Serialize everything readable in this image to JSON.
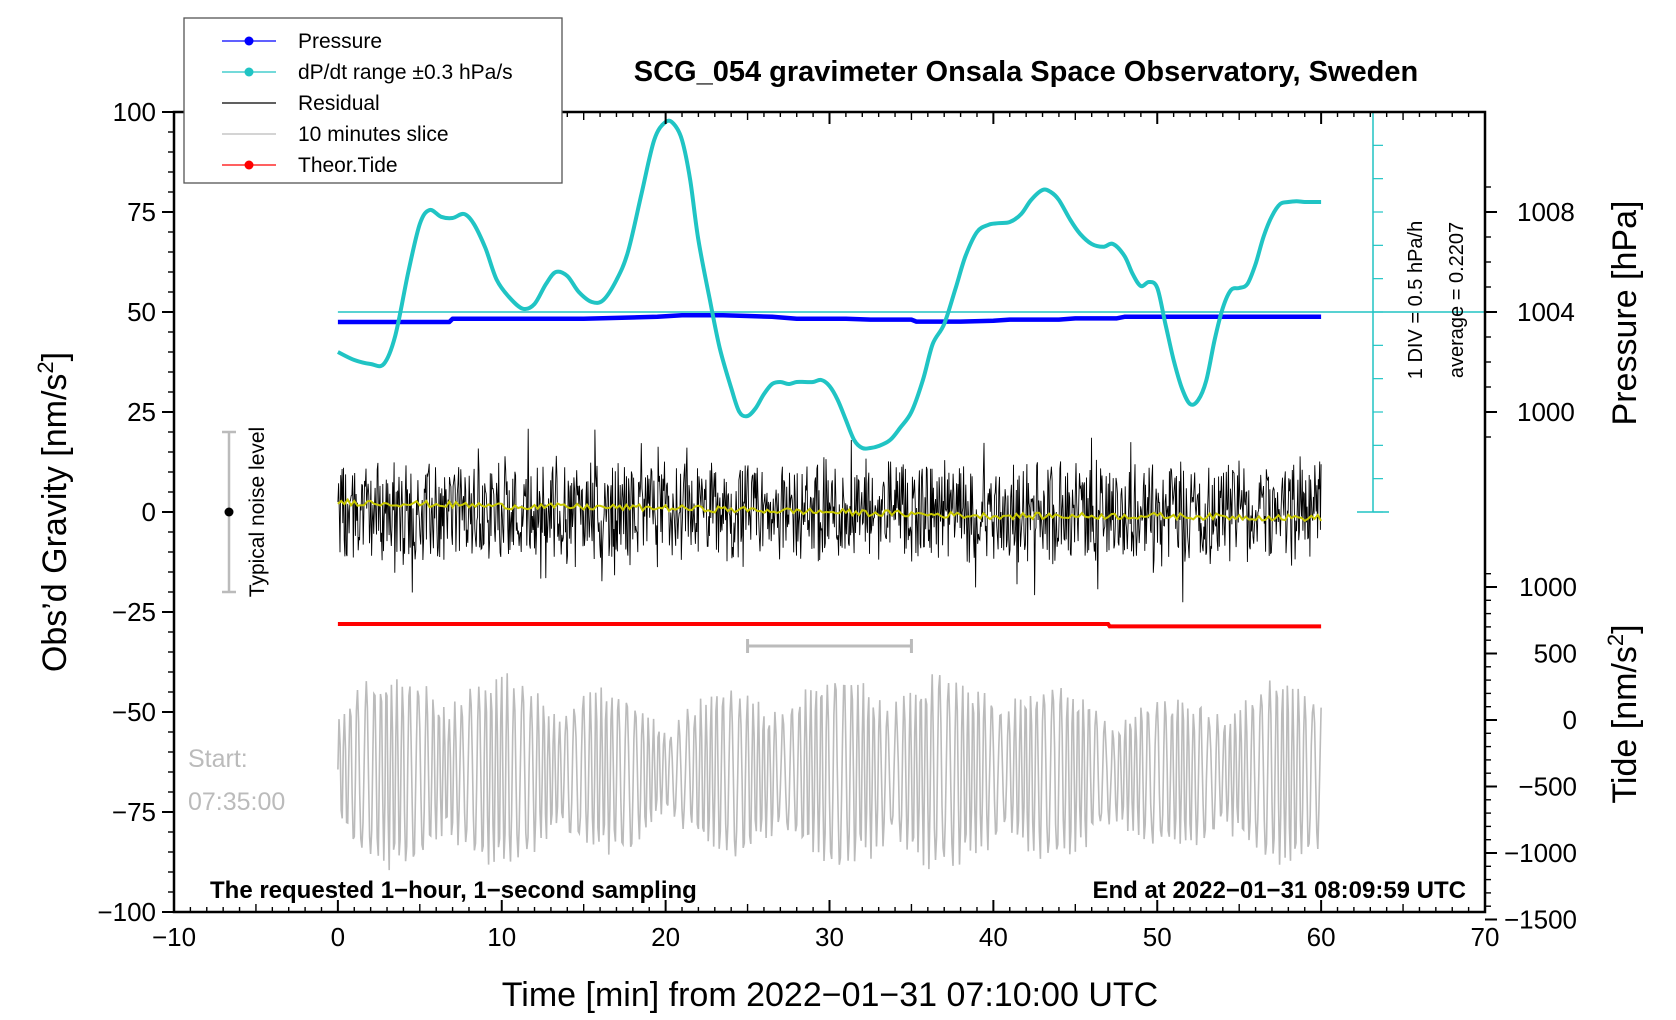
{
  "chart_data": {
    "type": "line",
    "title": "SCG_054 gravimeter Onsala Space Observatory, Sweden",
    "xlabel": "Time [min] from 2022−01−31 07:10:00 UTC",
    "ylabel": "Obs’d Gravity [nm/s2]",
    "ylabel_main": "Obs’d Gravity [nm/s",
    "ylabel_sup": "2",
    "ylabel_tail": "]",
    "y2label": "Pressure [hPa]",
    "y3label_main": "Tide [nm/s",
    "y3label_sup": "2",
    "y3label_tail": "]",
    "xlim": [
      -10,
      70
    ],
    "ylim": [
      -100,
      100
    ],
    "x_ticks": [
      "−10",
      "0",
      "10",
      "20",
      "30",
      "40",
      "50",
      "60",
      "70"
    ],
    "y_ticks": [
      "100",
      "75",
      "50",
      "25",
      "0",
      "−25",
      "−50",
      "−75",
      "−100"
    ],
    "pressure_axis": {
      "ticks": [
        "1008",
        "1004",
        "1000"
      ],
      "values": [
        1008,
        1004,
        1000
      ],
      "gravity_equiv": [
        75,
        50,
        25
      ]
    },
    "tide_axis": {
      "ticks": [
        "1000",
        "500",
        "0",
        "−500",
        "−1000",
        "−1500"
      ],
      "values": [
        1000,
        500,
        0,
        -500,
        -1000,
        -1500
      ]
    },
    "legend": [
      {
        "label": "Pressure",
        "color": "#0000ff",
        "marker": true
      },
      {
        "label": "dP/dt range ±0.3 hPa/s",
        "color": "#20c4c4",
        "marker": true
      },
      {
        "label": "Residual",
        "color": "#000000",
        "marker": false
      },
      {
        "label": "10 minutes slice",
        "color": "#bbbbbb",
        "marker": false
      },
      {
        "label": "Theor.Tide",
        "color": "#ff0000",
        "marker": true
      }
    ],
    "series": [
      {
        "name": "dP/dt",
        "color": "#20c4c4",
        "x": [
          0,
          1,
          2,
          2.8,
          3.5,
          4.3,
          5,
          5.6,
          6.3,
          7,
          7.7,
          8.3,
          9,
          9.7,
          10.5,
          11.3,
          12,
          12.7,
          13.3,
          14,
          14.7,
          15.5,
          16.2,
          17,
          17.7,
          18.5,
          19.3,
          20,
          20.5,
          21,
          21.5,
          22,
          22.7,
          23.3,
          24,
          24.5,
          25,
          25.5,
          26,
          26.5,
          27,
          27.5,
          28,
          28.5,
          29,
          29.5,
          30,
          30.5,
          31,
          31.5,
          32,
          32.5,
          33,
          33.7,
          34.3,
          35,
          35.7,
          36.3,
          37,
          37.7,
          38.3,
          39,
          39.7,
          40.3,
          41,
          41.7,
          42.3,
          43,
          43.5,
          44,
          44.7,
          45.3,
          46,
          46.7,
          47.3,
          48,
          48.5,
          49,
          49.5,
          50,
          50.5,
          51,
          51.5,
          52,
          52.5,
          53,
          53.5,
          54,
          54.5,
          55,
          55.5,
          56,
          56.5,
          57,
          57.5,
          58,
          58.5,
          59,
          59.5,
          60
        ],
        "y": [
          40,
          38,
          37,
          37,
          44,
          60,
          72,
          75.5,
          73.8,
          73.5,
          74.5,
          72,
          66,
          58,
          53.5,
          50.8,
          52,
          57,
          60,
          59,
          55,
          52.5,
          53,
          58,
          65,
          79,
          93,
          97.5,
          97,
          93,
          83,
          68,
          53,
          41,
          31,
          25,
          24,
          26,
          29.5,
          32,
          32.5,
          32,
          32.5,
          32.5,
          32.5,
          33,
          31.5,
          28,
          23,
          18,
          16,
          16,
          16.5,
          18,
          21,
          25,
          33,
          42,
          47,
          56,
          64,
          70,
          71.8,
          72.2,
          72.5,
          74.5,
          78,
          80.5,
          80,
          78,
          73,
          69.5,
          67,
          66.3,
          67,
          64,
          59.5,
          56.5,
          57.5,
          56,
          47,
          38,
          31,
          27,
          28,
          33,
          43,
          51,
          55.5,
          56,
          57,
          62,
          69,
          74,
          77,
          77.5,
          77.7,
          77.5,
          77.5,
          77.5
        ]
      },
      {
        "name": "Pressure",
        "color": "#0000ff",
        "x": [
          0,
          3,
          6.8,
          7,
          10,
          15,
          19.5,
          21,
          23.5,
          25,
          26.5,
          28,
          31,
          32.5,
          35,
          35.3,
          38,
          40,
          41,
          44,
          45,
          47.5,
          48,
          52,
          56,
          60
        ],
        "y": [
          47.5,
          47.5,
          47.5,
          48.3,
          48.3,
          48.3,
          48.8,
          49.2,
          49.2,
          49,
          48.8,
          48.3,
          48.3,
          48.1,
          48.1,
          47.6,
          47.6,
          47.8,
          48.1,
          48.1,
          48.4,
          48.4,
          48.8,
          48.8,
          48.8,
          48.8
        ]
      },
      {
        "name": "Theor.Tide",
        "color": "#ff0000",
        "x": [
          0,
          47,
          47.1,
          60
        ],
        "y": [
          -28,
          -28,
          -28.6,
          -28.6
        ]
      },
      {
        "name": "Residual",
        "color": "#000000",
        "x_range": [
          0,
          60
        ],
        "range_y": [
          -29,
          31
        ]
      },
      {
        "name": "Residual mean",
        "color": "#c8c800",
        "x": [
          0,
          10,
          20,
          30,
          40,
          50,
          60
        ],
        "y": [
          2.5,
          1.5,
          1,
          0,
          -1,
          -1,
          -1.5
        ]
      },
      {
        "name": "10 minutes slice",
        "color": "#bbbbbb",
        "x_range": [
          0,
          60
        ],
        "slice_center": -65,
        "marker_range": [
          25,
          35
        ],
        "marker_y": -33.5
      }
    ],
    "reference_line": {
      "y": 50,
      "color": "#20c4c4"
    },
    "dpdt_scale_label": "1 DIV = 0.5 hPa/h",
    "average_label": "average = 0.2207",
    "noise_label": "Typical noise level",
    "noise_range": [
      -20,
      20
    ],
    "start_label": "Start:",
    "start_time": "07:35:00",
    "footer_left": "The requested 1−hour, 1−second sampling",
    "footer_right": "End at 2022−01−31 08:09:59 UTC"
  }
}
